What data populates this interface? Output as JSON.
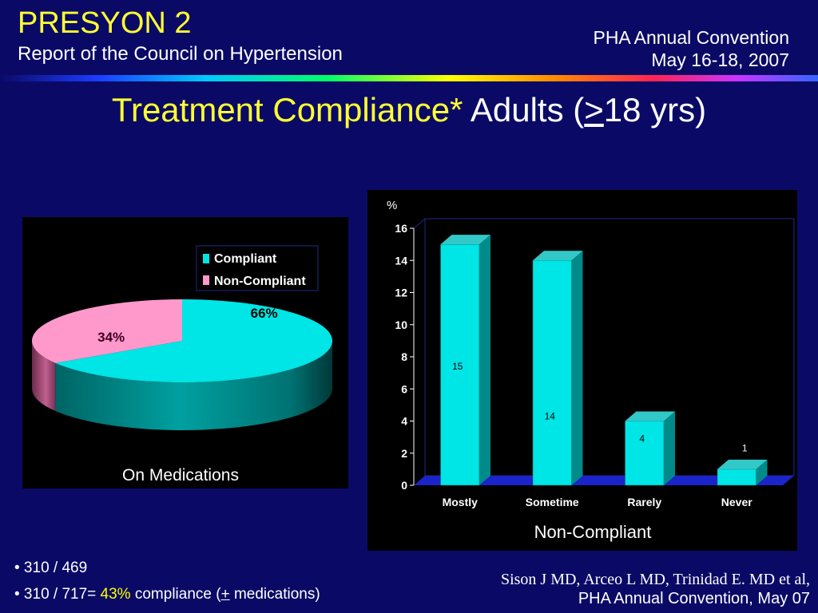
{
  "header": {
    "title": "PRESYON 2",
    "subtitle": "Report of the Council on Hypertension",
    "event_line1": "PHA Annual Convention",
    "event_line2": "May 16-18, 2007"
  },
  "slide_title": {
    "part1": "Treatment Compliance*",
    "part2_pre": " Adults (",
    "part2_sym": ">",
    "part2_post": "18 yrs)"
  },
  "bullets": {
    "b1": "• 310 / 469",
    "b2_pre": "• 310 / 717= ",
    "b2_highlight": "43%",
    "b2_mid": " compliance (",
    "b2_sym": "+",
    "b2_post": " medications)"
  },
  "citation": {
    "line1": "Sison J MD, Arceo L MD, Trinidad E. MD et al,",
    "line2": "PHA Annual Convention, May 07"
  },
  "colors": {
    "background": "#0a0a66",
    "title_yellow": "#ffff33",
    "compliant": "#00e5e5",
    "non_compliant": "#ff99cc",
    "highlight": "#ffff00"
  },
  "chart_data": [
    {
      "type": "pie",
      "caption": "On Medications",
      "legend_position": "top-right",
      "labels": [
        "Compliant",
        "Non-Compliant"
      ],
      "values": [
        66,
        34
      ],
      "value_labels": [
        "66%",
        "34%"
      ]
    },
    {
      "type": "bar",
      "caption": "Non-Compliant",
      "ylabel": "%",
      "categories": [
        "Mostly",
        "Sometime",
        "Rarely",
        "Never"
      ],
      "values": [
        15,
        14,
        4,
        1
      ],
      "ylim": [
        0,
        16
      ],
      "yticks": [
        0,
        2,
        4,
        6,
        8,
        10,
        12,
        14,
        16
      ],
      "grid": false
    }
  ]
}
